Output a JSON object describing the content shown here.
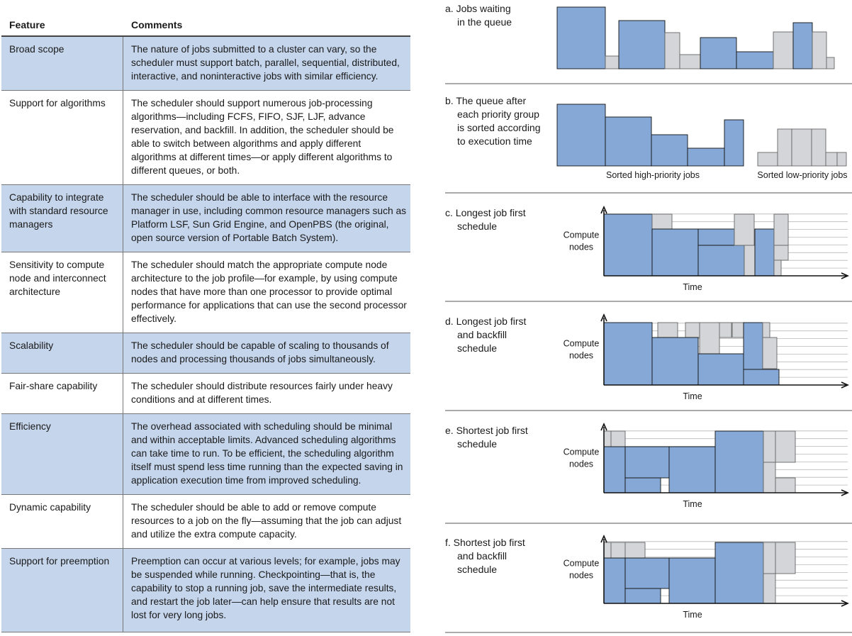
{
  "table": {
    "headers": {
      "feature": "Feature",
      "comments": "Comments"
    },
    "rows": [
      {
        "feature": "Broad scope",
        "comment": "The nature of jobs submitted to a cluster can vary, so the scheduler must support batch, parallel, sequential, distributed, interactive, and noninteractive jobs with similar efficiency.",
        "shaded": true
      },
      {
        "feature": "Support for algorithms",
        "comment": "The scheduler should support numerous job-processing algorithms—including FCFS, FIFO, SJF, LJF, advance reservation, and backfill. In addition, the scheduler should be able to switch between algorithms and apply different algorithms at different times—or apply different algorithms to different queues, or both.",
        "shaded": false
      },
      {
        "feature": "Capability to integrate with standard resource managers",
        "comment": "The scheduler should be able to interface with the resource manager in use, including common resource managers such as Platform LSF, Sun Grid Engine, and OpenPBS (the original, open source version of Portable Batch System).",
        "shaded": true
      },
      {
        "feature": "Sensitivity to compute node and interconnect architecture",
        "comment": "The scheduler should match the appropriate compute node architecture to the job profile—for example, by using compute nodes that have more than one processor to provide optimal performance for applications that can use the second processor effectively.",
        "shaded": false
      },
      {
        "feature": "Scalability",
        "comment": "The scheduler should be capable of scaling to thousands of nodes and processing thousands of jobs simultaneously.",
        "shaded": true
      },
      {
        "feature": "Fair-share capability",
        "comment": "The scheduler should distribute resources fairly under heavy conditions and at different times.",
        "shaded": false
      },
      {
        "feature": "Efficiency",
        "comment": "The overhead associated with scheduling should be minimal and within acceptable limits. Advanced scheduling algorithms can take time to run. To be efficient, the scheduling algorithm itself must spend less time running than the expected saving in application execution time from improved scheduling.",
        "shaded": true
      },
      {
        "feature": "Dynamic capability",
        "comment": "The scheduler should be able to add or remove compute resources to a job on the fly—assuming that the job can adjust and utilize the extra compute capacity.",
        "shaded": false
      },
      {
        "feature": "Support for preemption",
        "comment": "Preemption can occur at various levels; for example, jobs may be suspended while running. Checkpointing—that is, the capability to stop a running job, save the intermediate results, and restart the job later—can help ensure that results are not lost for very long jobs.",
        "shaded": true
      }
    ]
  },
  "colors": {
    "high_priority": "#86a8d6",
    "low_priority": "#d3d5d8",
    "row_shade": "#c5d5ec"
  },
  "panels": {
    "a": {
      "title": [
        "a. Jobs waiting",
        "in the queue"
      ]
    },
    "b": {
      "title": [
        "b. The queue after",
        "each priority group",
        "is sorted according",
        "to execution time"
      ],
      "group_high": "Sorted high-priority jobs",
      "group_low": "Sorted low-priority jobs"
    },
    "c": {
      "title": [
        "c. Longest job first",
        "schedule"
      ]
    },
    "d": {
      "title": [
        "d. Longest job first",
        "and backfill",
        "schedule"
      ]
    },
    "e": {
      "title": [
        "e. Shortest job first",
        "schedule"
      ]
    },
    "f": {
      "title": [
        "f. Shortest job first",
        "and backfill",
        "schedule"
      ]
    },
    "axis": {
      "y_label": [
        "Compute",
        "nodes"
      ],
      "x_label": "Time"
    }
  }
}
